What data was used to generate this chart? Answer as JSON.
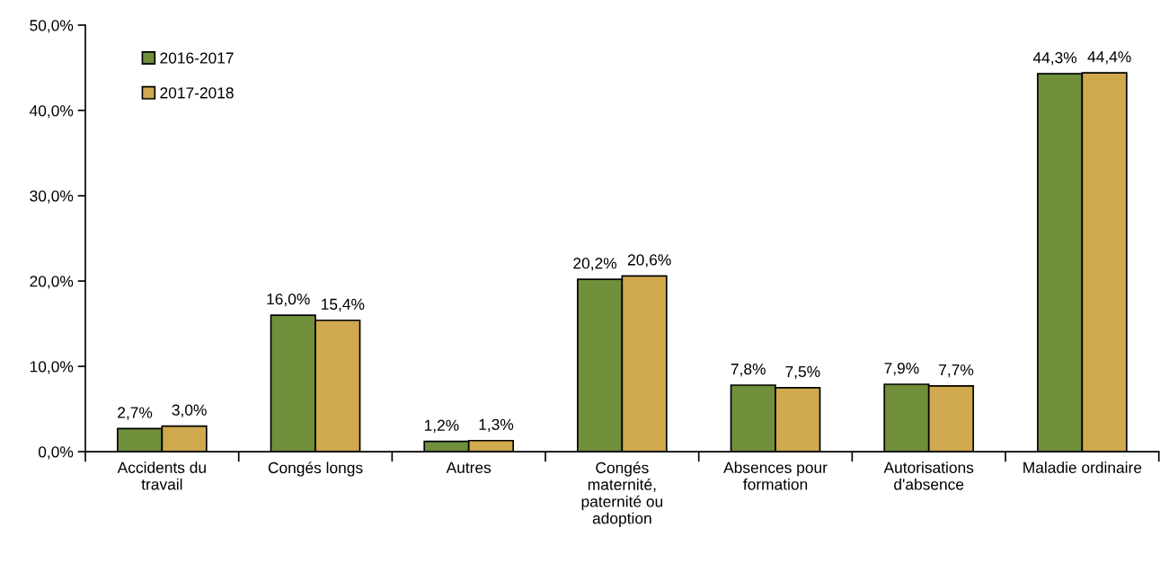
{
  "chart_data": {
    "type": "bar",
    "categories": [
      "Accidents du\ntravail",
      "Congés longs",
      "Autres",
      "Congés\nmaternité,\npaternité ou\nadoption",
      "Absences pour\nformation",
      "Autorisations\nd'absence",
      "Maladie ordinaire"
    ],
    "series": [
      {
        "name": "2016-2017",
        "color": "#6f8f3b",
        "values": [
          2.7,
          16.0,
          1.2,
          20.2,
          7.8,
          7.9,
          44.3
        ],
        "value_labels": [
          "2,7%",
          "16,0%",
          "1,2%",
          "20,2%",
          "7,8%",
          "7,9%",
          "44,3%"
        ]
      },
      {
        "name": "2017-2018",
        "color": "#d0a84d",
        "values": [
          3.0,
          15.4,
          1.3,
          20.6,
          7.5,
          7.7,
          44.4
        ],
        "value_labels": [
          "3,0%",
          "15,4%",
          "1,3%",
          "20,6%",
          "7,5%",
          "7,7%",
          "44,4%"
        ]
      }
    ],
    "ylim": [
      0,
      50
    ],
    "yticks": [
      {
        "value": 0,
        "label": "0,0%"
      },
      {
        "value": 10,
        "label": "10,0%"
      },
      {
        "value": 20,
        "label": "20,0%"
      },
      {
        "value": 30,
        "label": "30,0%"
      },
      {
        "value": 40,
        "label": "40,0%"
      },
      {
        "value": 50,
        "label": "50,0%"
      }
    ],
    "grid": false,
    "legend": "top left"
  }
}
